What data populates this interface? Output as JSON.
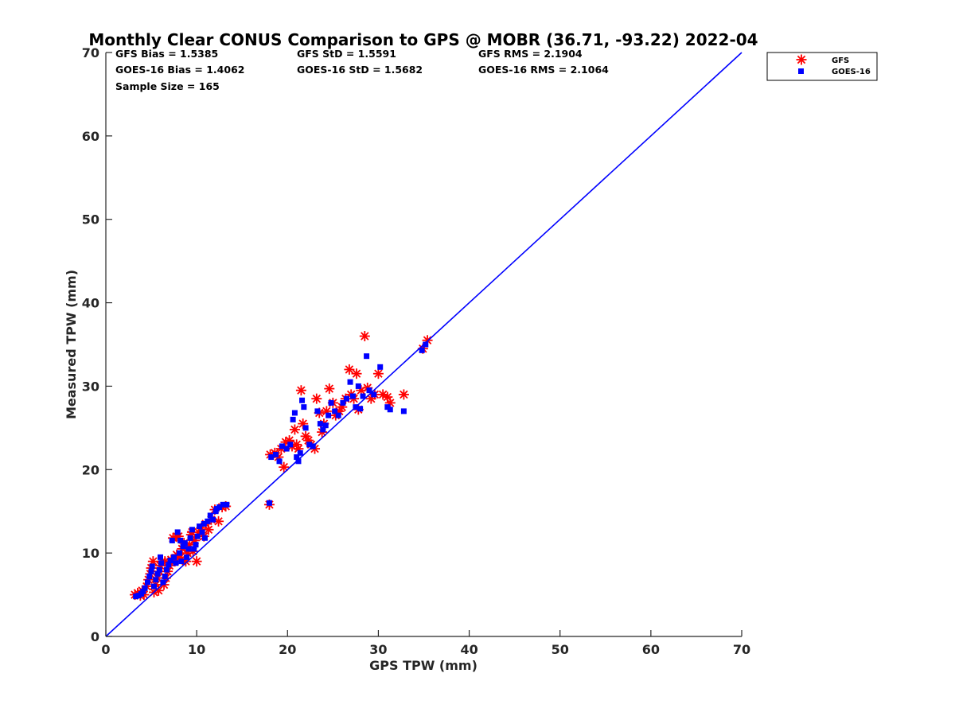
{
  "chart_data": {
    "type": "scatter",
    "title": "Monthly Clear CONUS Comparison to GPS @ MOBR (36.71, -93.22) 2022-04",
    "xlabel": "GPS TPW (mm)",
    "ylabel": "Measured TPW (mm)",
    "xlim": [
      0,
      70
    ],
    "ylim": [
      0,
      70
    ],
    "xticks": [
      0,
      10,
      20,
      30,
      40,
      50,
      60,
      70
    ],
    "yticks": [
      0,
      10,
      20,
      30,
      40,
      50,
      60,
      70
    ],
    "grid": false,
    "legend_position": "top-right outside",
    "reference_line": {
      "x": [
        0,
        70
      ],
      "y": [
        0,
        70
      ],
      "color": "#0000ff"
    },
    "stats": [
      {
        "text": "GFS Bias = 1.5385"
      },
      {
        "text": "GFS StD = 1.5591"
      },
      {
        "text": "GFS RMS = 2.1904"
      },
      {
        "text": "GOES-16 Bias = 1.4062"
      },
      {
        "text": "GOES-16 StD = 1.5682"
      },
      {
        "text": "GOES-16 RMS = 2.1064"
      },
      {
        "text": "Sample Size = 165"
      }
    ],
    "series": [
      {
        "name": "GFS",
        "marker": "asterisk",
        "color": "#ff0000",
        "points": [
          [
            3.2,
            5.0
          ],
          [
            3.5,
            5.2
          ],
          [
            3.8,
            4.9
          ],
          [
            4.0,
            5.5
          ],
          [
            4.2,
            5.0
          ],
          [
            4.5,
            6.0
          ],
          [
            4.7,
            6.8
          ],
          [
            4.9,
            7.5
          ],
          [
            5.0,
            8.2
          ],
          [
            5.2,
            9.0
          ],
          [
            5.3,
            5.3
          ],
          [
            5.5,
            6.2
          ],
          [
            5.7,
            7.0
          ],
          [
            5.9,
            7.8
          ],
          [
            6.0,
            8.5
          ],
          [
            6.2,
            9.0
          ],
          [
            5.8,
            5.5
          ],
          [
            6.4,
            6.2
          ],
          [
            6.6,
            7.0
          ],
          [
            6.8,
            7.8
          ],
          [
            7.0,
            8.5
          ],
          [
            7.2,
            9.2
          ],
          [
            7.4,
            11.8
          ],
          [
            7.6,
            9.0
          ],
          [
            7.8,
            9.8
          ],
          [
            8.0,
            12.0
          ],
          [
            8.2,
            9.5
          ],
          [
            8.4,
            10.5
          ],
          [
            8.6,
            11.2
          ],
          [
            8.8,
            9.0
          ],
          [
            9.0,
            10.0
          ],
          [
            9.2,
            11.0
          ],
          [
            9.4,
            12.2
          ],
          [
            9.6,
            10.2
          ],
          [
            9.8,
            11.5
          ],
          [
            10.0,
            9.0
          ],
          [
            10.2,
            12.5
          ],
          [
            10.5,
            13.0
          ],
          [
            10.8,
            12.0
          ],
          [
            11.0,
            13.5
          ],
          [
            11.3,
            12.8
          ],
          [
            11.6,
            14.0
          ],
          [
            12.0,
            15.2
          ],
          [
            12.4,
            13.8
          ],
          [
            12.8,
            15.5
          ],
          [
            13.2,
            15.6
          ],
          [
            18.0,
            15.8
          ],
          [
            18.1,
            21.8
          ],
          [
            18.6,
            22.0
          ],
          [
            19.0,
            21.5
          ],
          [
            19.3,
            22.5
          ],
          [
            19.6,
            20.3
          ],
          [
            19.8,
            23.3
          ],
          [
            20.2,
            23.5
          ],
          [
            20.5,
            22.8
          ],
          [
            20.8,
            24.8
          ],
          [
            21.0,
            23.0
          ],
          [
            21.2,
            22.5
          ],
          [
            21.5,
            29.5
          ],
          [
            21.7,
            25.5
          ],
          [
            22.0,
            24.0
          ],
          [
            22.3,
            23.5
          ],
          [
            22.6,
            23.0
          ],
          [
            23.0,
            22.5
          ],
          [
            23.2,
            28.5
          ],
          [
            23.5,
            26.8
          ],
          [
            23.8,
            24.5
          ],
          [
            24.0,
            25.5
          ],
          [
            24.3,
            27.0
          ],
          [
            24.6,
            29.7
          ],
          [
            25.0,
            28.0
          ],
          [
            25.3,
            26.5
          ],
          [
            25.7,
            27.0
          ],
          [
            26.0,
            27.5
          ],
          [
            26.4,
            28.5
          ],
          [
            26.8,
            32.0
          ],
          [
            27.0,
            29.0
          ],
          [
            27.3,
            28.5
          ],
          [
            27.6,
            31.5
          ],
          [
            27.8,
            27.2
          ],
          [
            28.1,
            29.5
          ],
          [
            28.5,
            36.0
          ],
          [
            28.8,
            29.8
          ],
          [
            29.2,
            28.5
          ],
          [
            29.6,
            29.0
          ],
          [
            30.0,
            31.5
          ],
          [
            30.5,
            29.0
          ],
          [
            31.0,
            28.7
          ],
          [
            31.3,
            28.0
          ],
          [
            32.8,
            29.0
          ],
          [
            34.9,
            34.5
          ],
          [
            35.4,
            35.5
          ],
          [
            6.5,
            9.0
          ],
          [
            7.8,
            12.0
          ],
          [
            9.5,
            12.5
          ]
        ]
      },
      {
        "name": "GOES-16",
        "marker": "square",
        "color": "#0000ff",
        "points": [
          [
            3.3,
            4.8
          ],
          [
            3.6,
            4.9
          ],
          [
            3.9,
            5.1
          ],
          [
            4.1,
            5.4
          ],
          [
            4.3,
            5.8
          ],
          [
            4.6,
            6.5
          ],
          [
            4.8,
            7.2
          ],
          [
            5.0,
            7.8
          ],
          [
            5.1,
            8.4
          ],
          [
            5.3,
            6.0
          ],
          [
            5.5,
            6.8
          ],
          [
            5.7,
            7.5
          ],
          [
            5.9,
            8.0
          ],
          [
            6.1,
            8.8
          ],
          [
            6.3,
            6.5
          ],
          [
            6.5,
            7.2
          ],
          [
            6.7,
            8.0
          ],
          [
            6.9,
            8.6
          ],
          [
            7.1,
            9.1
          ],
          [
            7.3,
            11.5
          ],
          [
            7.5,
            9.5
          ],
          [
            7.7,
            8.8
          ],
          [
            7.9,
            12.5
          ],
          [
            8.1,
            10.0
          ],
          [
            8.3,
            9.0
          ],
          [
            8.5,
            10.8
          ],
          [
            8.7,
            11.2
          ],
          [
            8.9,
            9.5
          ],
          [
            9.1,
            10.5
          ],
          [
            9.3,
            11.8
          ],
          [
            9.5,
            12.8
          ],
          [
            9.7,
            10.5
          ],
          [
            9.9,
            11.0
          ],
          [
            10.1,
            12.0
          ],
          [
            10.3,
            13.2
          ],
          [
            10.6,
            12.5
          ],
          [
            10.9,
            11.8
          ],
          [
            11.2,
            13.8
          ],
          [
            11.5,
            14.5
          ],
          [
            11.8,
            14.0
          ],
          [
            12.1,
            15.0
          ],
          [
            12.5,
            15.5
          ],
          [
            12.9,
            15.8
          ],
          [
            13.3,
            15.8
          ],
          [
            18.0,
            16.0
          ],
          [
            18.2,
            21.5
          ],
          [
            18.7,
            21.8
          ],
          [
            19.1,
            21.0
          ],
          [
            19.4,
            22.8
          ],
          [
            19.9,
            22.5
          ],
          [
            20.3,
            23.0
          ],
          [
            20.6,
            26.0
          ],
          [
            20.8,
            26.8
          ],
          [
            21.0,
            21.5
          ],
          [
            21.2,
            21.0
          ],
          [
            21.4,
            22.0
          ],
          [
            21.6,
            28.3
          ],
          [
            21.8,
            27.5
          ],
          [
            22.0,
            25.0
          ],
          [
            22.4,
            23.0
          ],
          [
            22.8,
            22.8
          ],
          [
            23.3,
            27.0
          ],
          [
            23.6,
            25.5
          ],
          [
            23.9,
            24.8
          ],
          [
            24.2,
            25.3
          ],
          [
            24.5,
            26.5
          ],
          [
            24.8,
            28.0
          ],
          [
            25.2,
            27.0
          ],
          [
            25.6,
            26.5
          ],
          [
            26.1,
            28.0
          ],
          [
            26.5,
            28.5
          ],
          [
            26.9,
            30.5
          ],
          [
            27.2,
            28.8
          ],
          [
            27.5,
            27.5
          ],
          [
            27.8,
            30.0
          ],
          [
            28.0,
            27.3
          ],
          [
            28.3,
            28.8
          ],
          [
            28.7,
            33.6
          ],
          [
            29.0,
            29.5
          ],
          [
            29.5,
            29.0
          ],
          [
            30.2,
            32.3
          ],
          [
            31.0,
            27.5
          ],
          [
            31.3,
            27.2
          ],
          [
            32.8,
            27.0
          ],
          [
            34.8,
            34.3
          ],
          [
            35.2,
            35.0
          ],
          [
            6.0,
            9.5
          ],
          [
            8.2,
            11.5
          ],
          [
            10.8,
            13.5
          ],
          [
            12.2,
            15.3
          ]
        ]
      }
    ]
  }
}
